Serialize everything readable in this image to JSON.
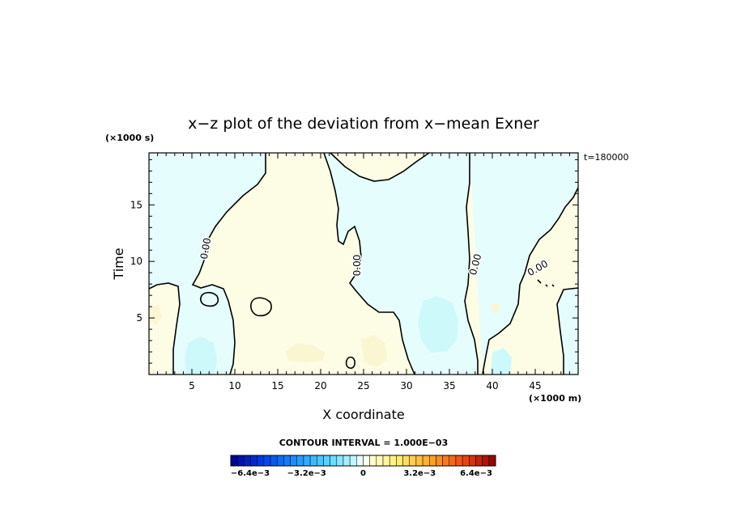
{
  "chart_data": {
    "type": "contour",
    "title": "x−z plot of the deviation from x−mean Exner",
    "xlabel": "X coordinate",
    "ylabel": "Time",
    "x_unit": "(×1000 m)",
    "y_unit": "(×1000 s)",
    "time_label": "t=180000",
    "xlim": [
      0,
      50
    ],
    "ylim": [
      0,
      19.6
    ],
    "x_ticks": [
      5,
      10,
      15,
      20,
      25,
      30,
      35,
      40,
      45
    ],
    "y_ticks": [
      5,
      10,
      15
    ],
    "contour_interval_text": "CONTOUR INTERVAL = 1.000E−03",
    "contour_label": "0.00",
    "colorbar": {
      "min": -0.0075,
      "max": 0.0075,
      "n": 40,
      "tick_labels": [
        "−6.4e−3",
        "−3.2e−3",
        "0",
        "3.2e−3",
        "6.4e−3"
      ],
      "tick_values": [
        -0.0064,
        -0.0032,
        0,
        0.0032,
        0.0064
      ]
    },
    "colors": {
      "negative_fill": "#e6fdfd",
      "negative_strong": "#cdf9fb",
      "positive_fill": "#fdfde6",
      "positive_strong": "#fbf6d2"
    }
  }
}
